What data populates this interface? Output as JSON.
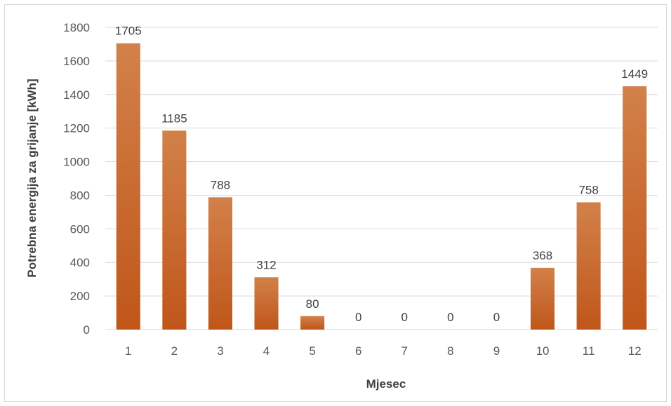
{
  "chart_data": {
    "type": "bar",
    "title": "",
    "xlabel": "Mjesec",
    "ylabel": "Potrebna energija za grijanje [kWh]",
    "categories": [
      "1",
      "2",
      "3",
      "4",
      "5",
      "6",
      "7",
      "8",
      "9",
      "10",
      "11",
      "12"
    ],
    "values": [
      1705,
      1185,
      788,
      312,
      80,
      0,
      0,
      0,
      0,
      368,
      758,
      1449
    ],
    "ylim": [
      0,
      1800
    ],
    "yticks": [
      0,
      200,
      400,
      600,
      800,
      1000,
      1200,
      1400,
      1600,
      1800
    ],
    "grid": true,
    "legend": "none",
    "data_labels": true,
    "colors": {
      "bar_top": "#d2814a",
      "bar_bottom": "#c0561a",
      "grid": "#d9d9d9",
      "axis": "#d9d9d9"
    }
  }
}
